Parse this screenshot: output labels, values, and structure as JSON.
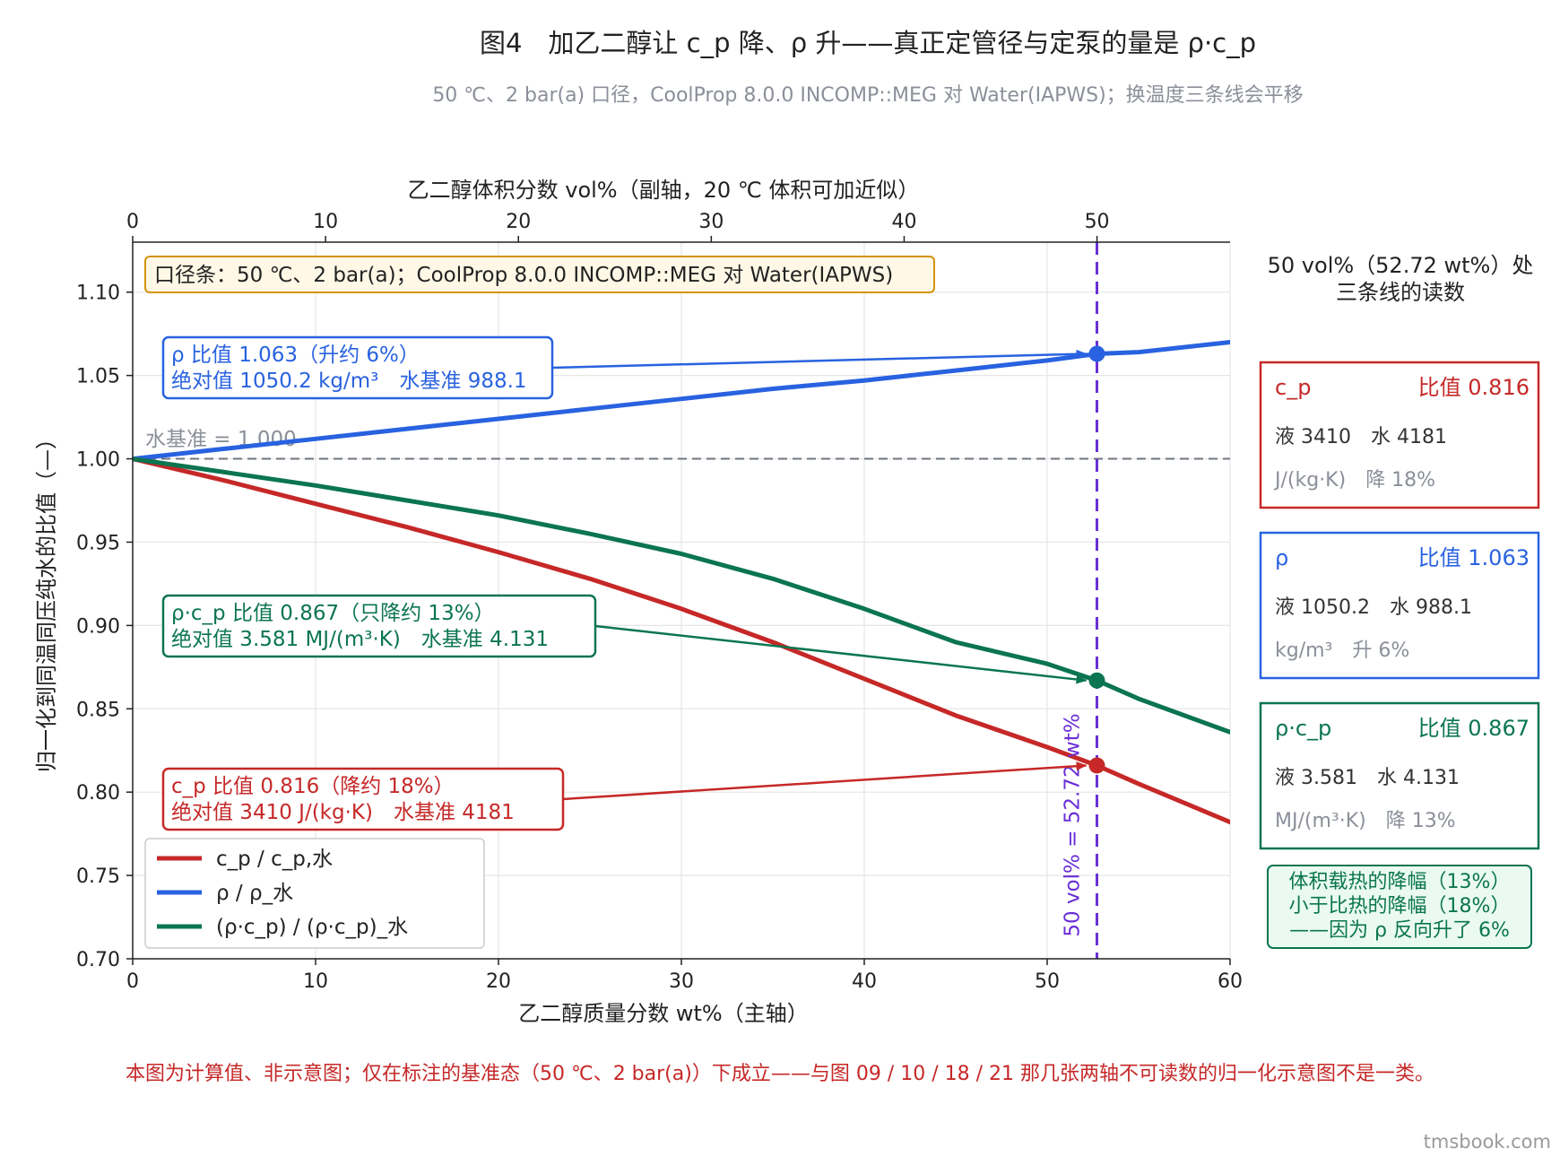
{
  "title": "图4　加乙二醇让 c_p 降、ρ 升——真正定管径与定泵的量是 ρ·c_p",
  "subtitle": "50 ℃、2 bar(a) 口径，CoolProp 8.0.0 INCOMP::MEG 对 Water(IAPWS)；换温度三条线会平移",
  "colors": {
    "cp": "#c62828",
    "rho": "#2962e0",
    "rhocp": "#0b7550",
    "marker_line": "#6a2fd6",
    "baseline": "#6e7580",
    "note_border": "#d4930a",
    "note_fill": "#fff8e6"
  },
  "chart_data": {
    "type": "line",
    "xlabel": "乙二醇质量分数 wt%（主轴）",
    "ylabel": "归一化到同温同压纯水的比值（—）",
    "x2label": "乙二醇体积分数 vol%（副轴，20 ℃ 体积可加近似）",
    "xlim": [
      0,
      60
    ],
    "ylim": [
      0.7,
      1.13
    ],
    "x2lim": [
      0,
      56.9
    ],
    "xticks": [
      "0",
      "10",
      "20",
      "30",
      "40",
      "50",
      "60"
    ],
    "yticks": [
      "0.70",
      "0.75",
      "0.80",
      "0.85",
      "0.90",
      "0.95",
      "1.00",
      "1.05",
      "1.10"
    ],
    "x2ticks": [
      "0",
      "10",
      "20",
      "30",
      "40",
      "50"
    ],
    "grid": true,
    "legend_position": "lower-left",
    "x": [
      0,
      5,
      10,
      15,
      20,
      25,
      30,
      35,
      40,
      45,
      50,
      52.72,
      55,
      60
    ],
    "series": [
      {
        "name": "c_p / c_p,水",
        "key": "cp",
        "values": [
          1.0,
          0.987,
          0.973,
          0.959,
          0.944,
          0.928,
          0.91,
          0.89,
          0.868,
          0.846,
          0.827,
          0.816,
          0.805,
          0.782
        ]
      },
      {
        "name": "ρ / ρ_水",
        "key": "rho",
        "values": [
          1.0,
          1.006,
          1.012,
          1.018,
          1.024,
          1.03,
          1.036,
          1.042,
          1.047,
          1.053,
          1.059,
          1.063,
          1.064,
          1.07
        ]
      },
      {
        "name": "(ρ·c_p) / (ρ·c_p)_水",
        "key": "rhocp",
        "values": [
          1.0,
          0.992,
          0.984,
          0.975,
          0.966,
          0.955,
          0.943,
          0.928,
          0.91,
          0.89,
          0.877,
          0.867,
          0.856,
          0.836
        ]
      }
    ],
    "baseline": {
      "value": 1.0,
      "label": "水基准 = 1.000"
    },
    "marker": {
      "x": 52.72,
      "x2": 50,
      "label": "50 vol% = 52.72 wt%"
    },
    "points": [
      {
        "key": "rho",
        "x": 52.72,
        "y": 1.063
      },
      {
        "key": "rhocp",
        "x": 52.72,
        "y": 0.867
      },
      {
        "key": "cp",
        "x": 52.72,
        "y": 0.816
      }
    ],
    "note": "口径条：50 ℃、2 bar(a)；CoolProp 8.0.0 INCOMP::MEG 对 Water(IAPWS)",
    "annotations": [
      {
        "key": "rho",
        "line1": "ρ 比值 1.063（升约 6%）",
        "line2": "绝对值 1050.2 kg/m³　水基准 988.1"
      },
      {
        "key": "rhocp",
        "line1": "ρ·c_p 比值 0.867（只降约 13%）",
        "line2": "绝对值 3.581 MJ/(m³·K)　水基准 4.131"
      },
      {
        "key": "cp",
        "line1": "c_p 比值 0.816（降约 18%）",
        "line2": "绝对值 3410 J/(kg·K)　水基准 4181"
      }
    ]
  },
  "side_panel": {
    "header_line1": "50 vol%（52.72 wt%）处",
    "header_line2": "三条线的读数",
    "boxes": [
      {
        "key": "cp",
        "name": "c_p",
        "ratio": "比值 0.816",
        "values": "液 3410　水 4181",
        "unit": "J/(kg·K)　降 18%"
      },
      {
        "key": "rho",
        "name": "ρ",
        "ratio": "比值 1.063",
        "values": "液 1050.2　水 988.1",
        "unit": "kg/m³　升 6%"
      },
      {
        "key": "rhocp",
        "name": "ρ·c_p",
        "ratio": "比值 0.867",
        "values": "液 3.581　水 4.131",
        "unit": "MJ/(m³·K)　降 13%"
      }
    ],
    "conclusion": [
      "体积载热的降幅（13%）",
      "小于比热的降幅（18%）",
      "——因为 ρ 反向升了 6%"
    ]
  },
  "footnote": "本图为计算值、非示意图；仅在标注的基准态（50 ℃、2 bar(a)）下成立——与图 09 / 10 / 18 / 21 那几张两轴不可读数的归一化示意图不是一类。",
  "brand": "tmsbook.com"
}
